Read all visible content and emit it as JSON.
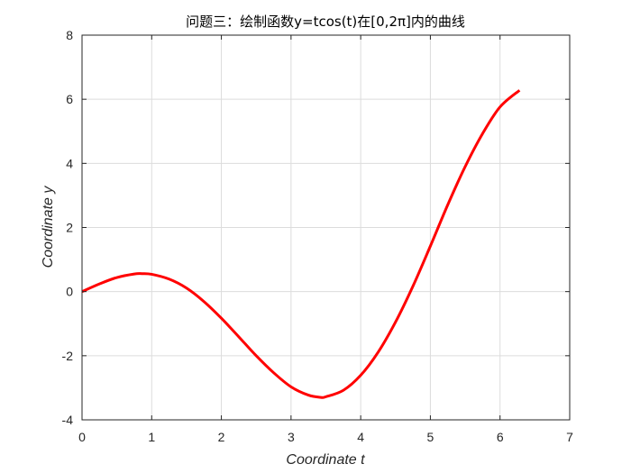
{
  "chart_data": {
    "type": "line",
    "title": "问题三：绘制函数y=tcos(t)在[0,2π]内的曲线",
    "xlabel": "Coordinate t",
    "ylabel": "Coordinate y",
    "xlim": [
      0,
      7
    ],
    "ylim": [
      -4,
      8
    ],
    "xticks": [
      0,
      1,
      2,
      3,
      4,
      5,
      6,
      7
    ],
    "yticks": [
      -4,
      -2,
      0,
      2,
      4,
      6,
      8
    ],
    "xtick_labels": [
      "0",
      "1",
      "2",
      "3",
      "4",
      "5",
      "6",
      "7"
    ],
    "ytick_labels": [
      "-4",
      "-2",
      "0",
      "2",
      "4",
      "6",
      "8"
    ],
    "grid": true,
    "legend": "none",
    "series": [
      {
        "color": "#ff0000",
        "x": [
          0,
          0.25,
          0.5,
          0.75,
          0.86,
          1.0,
          1.25,
          1.5,
          1.75,
          2.0,
          2.25,
          2.5,
          2.75,
          3.0,
          3.25,
          3.43,
          3.5,
          3.75,
          4.0,
          4.25,
          4.5,
          4.75,
          5.0,
          5.25,
          5.5,
          5.75,
          6.0,
          6.28
        ],
        "y": [
          0,
          0.24,
          0.44,
          0.55,
          0.56,
          0.54,
          0.39,
          0.11,
          -0.31,
          -0.83,
          -1.41,
          -2.0,
          -2.53,
          -2.97,
          -3.23,
          -3.3,
          -3.28,
          -3.08,
          -2.61,
          -1.89,
          -0.95,
          0.17,
          1.42,
          2.71,
          3.9,
          4.93,
          5.76,
          6.28
        ]
      }
    ]
  }
}
